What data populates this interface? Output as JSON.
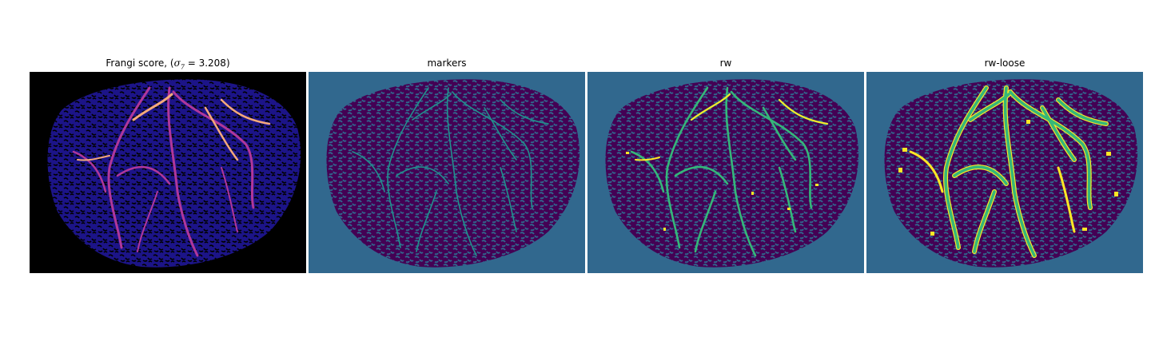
{
  "panels": [
    {
      "title_prefix": "Frangi score, (",
      "title_symbol": "σ",
      "title_sub": "7",
      "title_suffix": " = 3.208)",
      "colormap": "magma"
    },
    {
      "title": "markers",
      "colormap": "viridis"
    },
    {
      "title": "rw",
      "colormap": "viridis"
    },
    {
      "title": "rw-loose",
      "colormap": "viridis"
    }
  ],
  "colors": {
    "black": "#000000",
    "magma_low": "#1c1488",
    "magma_mid": "#b0379a",
    "magma_high": "#f6a97a",
    "viridis_purple": "#440154",
    "viridis_blue": "#31688e",
    "viridis_teal": "#21918c",
    "viridis_green": "#35b779",
    "viridis_yellow": "#fde725"
  }
}
